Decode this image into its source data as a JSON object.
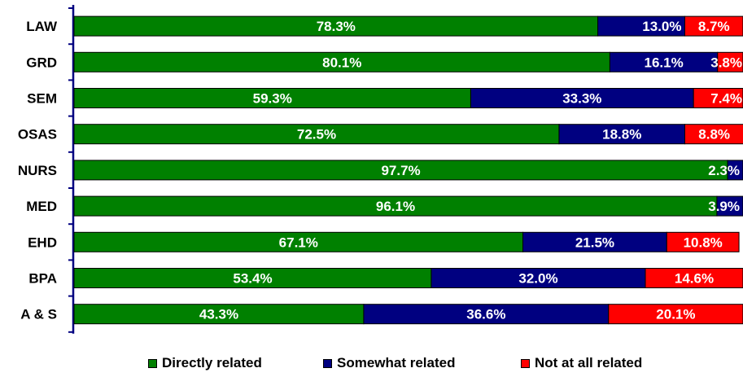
{
  "chart_data": {
    "type": "bar",
    "orientation": "horizontal",
    "stacked": true,
    "categories": [
      "LAW",
      "GRD",
      "SEM",
      "OSAS",
      "NURS",
      "MED",
      "EHD",
      "BPA",
      "A & S"
    ],
    "series": [
      {
        "name": "Directly related",
        "color": "#008000",
        "values": [
          78.3,
          80.1,
          59.3,
          72.5,
          97.7,
          96.1,
          67.1,
          53.4,
          43.3
        ]
      },
      {
        "name": "Somewhat related",
        "color": "#000080",
        "values": [
          13.0,
          16.1,
          33.3,
          18.8,
          2.3,
          3.9,
          21.5,
          32.0,
          36.6
        ]
      },
      {
        "name": "Not at all related",
        "color": "#ff0000",
        "values": [
          8.7,
          3.8,
          7.4,
          8.8,
          0,
          0,
          10.8,
          14.6,
          20.1
        ]
      }
    ],
    "xlim": [
      0,
      100
    ],
    "grid": false,
    "legend_position": "bottom"
  }
}
